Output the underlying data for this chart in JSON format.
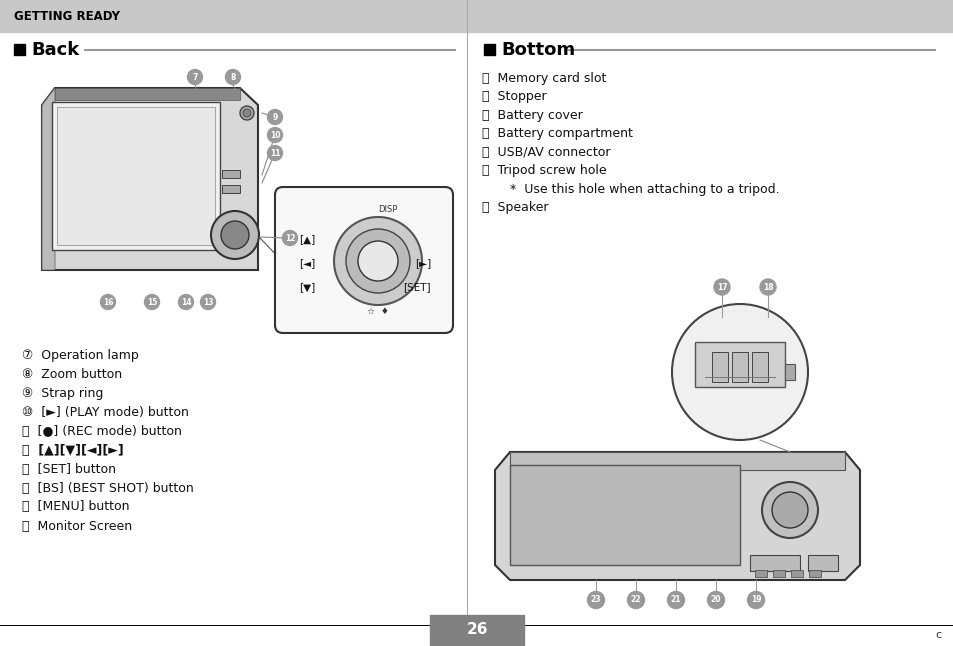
{
  "page_bg": "#ffffff",
  "header_bg": "#c8c8c8",
  "header_text": "GETTING READY",
  "header_text_color": "#000000",
  "left_section_title": "Back",
  "right_section_title": "Bottom",
  "left_items": [
    "⑦  Operation lamp",
    "⑧  Zoom button",
    "⑨  Strap ring",
    "⑩  [►] (PLAY mode) button",
    "⑪  [●] (REC mode) button",
    "⑫  [▲][▼][◄][►]",
    "⑬  [SET] button",
    "⑭  [BS] (BEST SHOT) button",
    "⑮  [MENU] button",
    "⑯  Monitor Screen"
  ],
  "right_items": [
    "⑰  Memory card slot",
    "⑱  Stopper",
    "⑲  Battery cover",
    "⑳  Battery compartment",
    "⑴  USB/AV connector",
    "⑵  Tripod screw hole",
    "       *  Use this hole when attaching to a tripod.",
    "⑶  Speaker"
  ],
  "page_number": "26",
  "page_number_bg": "#808080",
  "page_number_color": "#ffffff",
  "divider_color": "#999999",
  "section_title_color": "#000000",
  "item_text_color": "#111111",
  "footer_line_color": "#000000",
  "corner_text": "c",
  "label_circle_color": "#999999",
  "label_text_color": "#ffffff"
}
